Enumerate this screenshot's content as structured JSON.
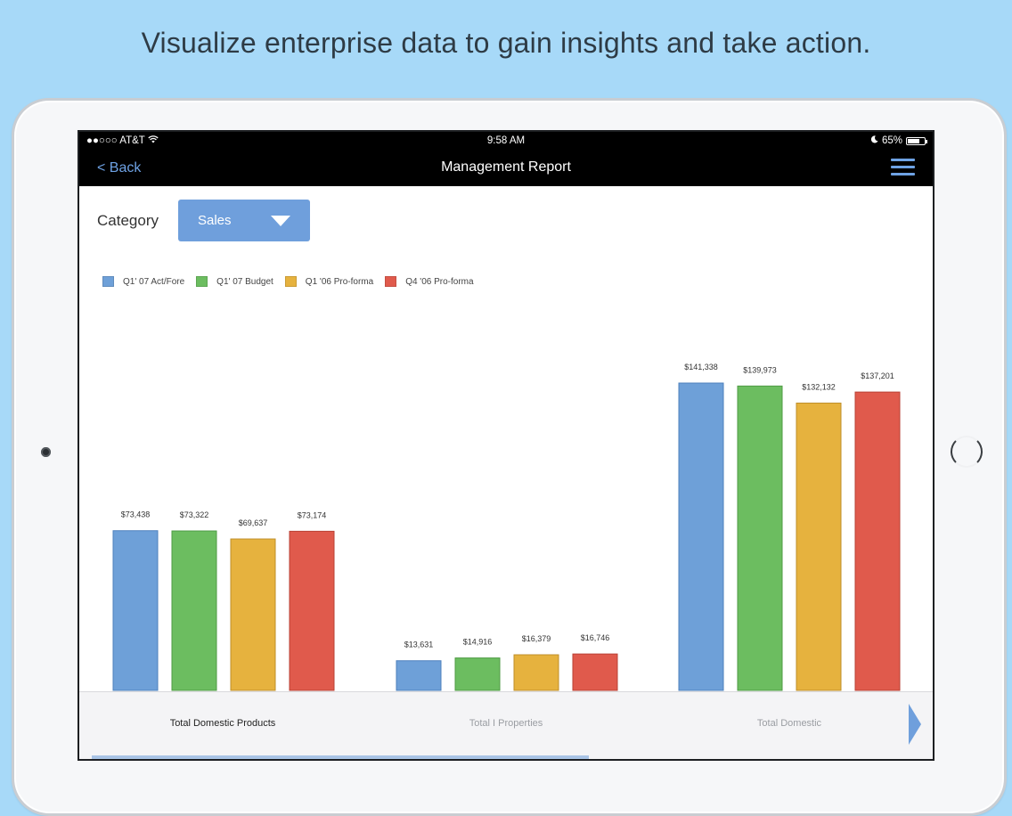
{
  "headline": "Visualize enterprise data to gain insights and take action.",
  "status_bar": {
    "carrier": "●●○○○ AT&T",
    "wifi_icon": "wifi-icon",
    "time": "9:58 AM",
    "moon_icon": "moon-icon",
    "battery": "65%"
  },
  "nav": {
    "back_label": "< Back",
    "title": "Management Report",
    "menu_icon": "hamburger-menu-icon"
  },
  "filter": {
    "label": "Category",
    "selected": "Sales"
  },
  "colors": {
    "accent": "#6f9fdc",
    "series": [
      "#6ea0d8",
      "#6cbd60",
      "#e6b23e",
      "#e05a4c"
    ]
  },
  "chart_data": {
    "type": "bar",
    "title": "",
    "categories": [
      "Total Domestic Products",
      "Total I Properties",
      "Total Domestic"
    ],
    "series": [
      {
        "name": "Q1' 07 Act/Fore",
        "values": [
          73438,
          13631,
          141338
        ],
        "labels": [
          "$73,438",
          "$13,631",
          "$141,338"
        ]
      },
      {
        "name": "Q1' 07 Budget",
        "values": [
          73322,
          14916,
          139973
        ],
        "labels": [
          "$73,322",
          "$14,916",
          "$139,973"
        ]
      },
      {
        "name": "Q1 '06 Pro-forma",
        "values": [
          69637,
          16379,
          132132
        ],
        "labels": [
          "$69,637",
          "$16,379",
          "$132,132"
        ]
      },
      {
        "name": "Q4 '06 Pro-forma",
        "values": [
          73174,
          16746,
          137201
        ],
        "labels": [
          "$73,174",
          "$16,746",
          "$137,201"
        ]
      }
    ],
    "ylim": [
      0,
      160000
    ],
    "grid": false,
    "legend": "top-left",
    "selected_category": "Total Domestic Products"
  }
}
